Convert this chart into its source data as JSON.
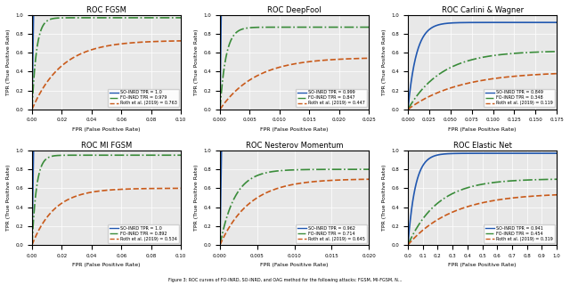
{
  "subplots": [
    {
      "title": "ROC FGSM",
      "xlabel": "FPR (False Positive Rate)",
      "ylabel": "TPR (True Positive Rate)",
      "xlim": [
        0.0,
        0.1
      ],
      "ylim": [
        0.0,
        1.0
      ],
      "xticks": [
        0.0,
        0.02,
        0.04,
        0.06,
        0.08,
        0.1
      ],
      "legend": [
        "SO-INRD TPR = 1.0",
        "FO-INRD TPR = 0.979",
        "Roth et al. (2019) = 0.763"
      ],
      "curves": [
        {
          "type": "step_up",
          "x_jump": 0.001,
          "y_plateau": 1.0,
          "color": "#2158b0",
          "ls": "-",
          "lw": 1.2
        },
        {
          "type": "log_rise",
          "scale": 0.003,
          "y_start": 0.0,
          "y_end": 0.97,
          "color": "#3a8c3a",
          "ls": "-.",
          "lw": 1.2
        },
        {
          "type": "log_rise",
          "scale": 0.02,
          "y_start": 0.0,
          "y_end": 0.73,
          "color": "#c95a1a",
          "ls": "--",
          "lw": 1.2
        }
      ]
    },
    {
      "title": "ROC DeepFool",
      "xlabel": "FPR (False Positive Rate)",
      "ylabel": "TPR (True Positive Rate)",
      "xlim": [
        0.0,
        0.025
      ],
      "ylim": [
        0.0,
        1.0
      ],
      "xticks": [
        0.0,
        0.005,
        0.01,
        0.015,
        0.02,
        0.025
      ],
      "legend": [
        "SO-INRD TPR = 0.999",
        "FO-INRD TPR = 0.847",
        "Roth et al. (2019) = 0.447"
      ],
      "curves": [
        {
          "type": "step_up",
          "x_jump": 0.0002,
          "y_plateau": 1.0,
          "color": "#2158b0",
          "ls": "-",
          "lw": 1.2
        },
        {
          "type": "log_rise",
          "scale": 0.001,
          "y_start": 0.0,
          "y_end": 0.87,
          "color": "#3a8c3a",
          "ls": "-.",
          "lw": 1.2
        },
        {
          "type": "log_rise",
          "scale": 0.006,
          "y_start": 0.0,
          "y_end": 0.55,
          "color": "#c95a1a",
          "ls": "--",
          "lw": 1.2
        }
      ]
    },
    {
      "title": "ROC Carlini & Wagner",
      "xlabel": "FPR (False Positive Rate)",
      "ylabel": "TPR (True Positive Rate)",
      "xlim": [
        0.0,
        0.175
      ],
      "ylim": [
        0.0,
        1.0
      ],
      "xticks": [
        0.0,
        0.025,
        0.05,
        0.075,
        0.1,
        0.125,
        0.15,
        0.175
      ],
      "legend": [
        "SO-INRD TPR = 0.849",
        "FO-INRD TPR = 0.348",
        "Roth et al. (2019) = 0.119"
      ],
      "curves": [
        {
          "type": "log_rise",
          "scale": 0.01,
          "y_start": 0.0,
          "y_end": 0.92,
          "color": "#2158b0",
          "ls": "-",
          "lw": 1.2
        },
        {
          "type": "log_rise",
          "scale": 0.04,
          "y_start": 0.0,
          "y_end": 0.62,
          "color": "#3a8c3a",
          "ls": "-.",
          "lw": 1.2
        },
        {
          "type": "log_rise",
          "scale": 0.06,
          "y_start": 0.0,
          "y_end": 0.4,
          "color": "#c95a1a",
          "ls": "--",
          "lw": 1.2
        }
      ]
    },
    {
      "title": "ROC MI FGSM",
      "xlabel": "FPR (False Positive Rate)",
      "ylabel": "TPR (True Positive Rate)",
      "xlim": [
        0.0,
        0.1
      ],
      "ylim": [
        0.0,
        1.0
      ],
      "xticks": [
        0.0,
        0.02,
        0.04,
        0.06,
        0.08,
        0.1
      ],
      "legend": [
        "SO-INRD TPR = 1.0",
        "FO-INRD TPR = 0.892",
        "Roth et al. (2019) = 0.534"
      ],
      "curves": [
        {
          "type": "step_up",
          "x_jump": 0.001,
          "y_plateau": 1.0,
          "color": "#2158b0",
          "ls": "-",
          "lw": 1.2
        },
        {
          "type": "log_rise",
          "scale": 0.003,
          "y_start": 0.0,
          "y_end": 0.95,
          "color": "#3a8c3a",
          "ls": "-.",
          "lw": 1.2
        },
        {
          "type": "log_rise",
          "scale": 0.015,
          "y_start": 0.0,
          "y_end": 0.6,
          "color": "#c95a1a",
          "ls": "--",
          "lw": 1.2
        }
      ]
    },
    {
      "title": "ROC Nesterov Momentum",
      "xlabel": "FPR (False Positive Rate)",
      "ylabel": "TPR (True Positive Rate)",
      "xlim": [
        0.0,
        0.02
      ],
      "ylim": [
        0.0,
        1.0
      ],
      "xticks": [
        0.0,
        0.005,
        0.01,
        0.015,
        0.02
      ],
      "legend": [
        "SO-INRD TPR = 0.962",
        "FO-INRD TPR = 0.714",
        "Roth et al. (2019) = 0.645"
      ],
      "curves": [
        {
          "type": "step_up",
          "x_jump": 0.0002,
          "y_plateau": 1.0,
          "color": "#2158b0",
          "ls": "-",
          "lw": 1.2
        },
        {
          "type": "log_rise",
          "scale": 0.002,
          "y_start": 0.0,
          "y_end": 0.8,
          "color": "#3a8c3a",
          "ls": "-.",
          "lw": 1.2
        },
        {
          "type": "log_rise",
          "scale": 0.004,
          "y_start": 0.0,
          "y_end": 0.7,
          "color": "#c95a1a",
          "ls": "--",
          "lw": 1.2
        }
      ]
    },
    {
      "title": "ROC Elastic Net",
      "xlabel": "FPR (False Positive Rate)",
      "ylabel": "TPR (True Positive Rate)",
      "xlim": [
        0.0,
        1.0
      ],
      "ylim": [
        0.0,
        1.0
      ],
      "xticks": [
        0.0,
        0.1,
        0.2,
        0.3,
        0.4,
        0.5,
        0.6,
        0.7,
        0.8,
        0.9,
        1.0
      ],
      "legend": [
        "SO-INRD TPR = 0.941",
        "FO-INRD TPR = 0.454",
        "Roth et al. (2019) = 0.319"
      ],
      "curves": [
        {
          "type": "log_rise",
          "scale": 0.05,
          "y_start": 0.0,
          "y_end": 0.97,
          "color": "#2158b0",
          "ls": "-",
          "lw": 1.2
        },
        {
          "type": "log_rise",
          "scale": 0.2,
          "y_start": 0.0,
          "y_end": 0.7,
          "color": "#3a8c3a",
          "ls": "-.",
          "lw": 1.2
        },
        {
          "type": "log_rise",
          "scale": 0.3,
          "y_start": 0.0,
          "y_end": 0.55,
          "color": "#c95a1a",
          "ls": "--",
          "lw": 1.2
        }
      ]
    }
  ],
  "legend_labels": [
    "SO-INRD",
    "FO-INRD",
    "Roth et al. (2019)"
  ],
  "legend_colors": [
    "#2158b0",
    "#3a8c3a",
    "#c95a1a"
  ],
  "legend_styles": [
    "-",
    "-.",
    "--"
  ],
  "bg_color": "#e8e8e8",
  "caption": "Figure 3: ROC curves of FO-INRD, SO-INRD, and OAG method for the following attacks: FGSM, MI-FGSM, N..."
}
